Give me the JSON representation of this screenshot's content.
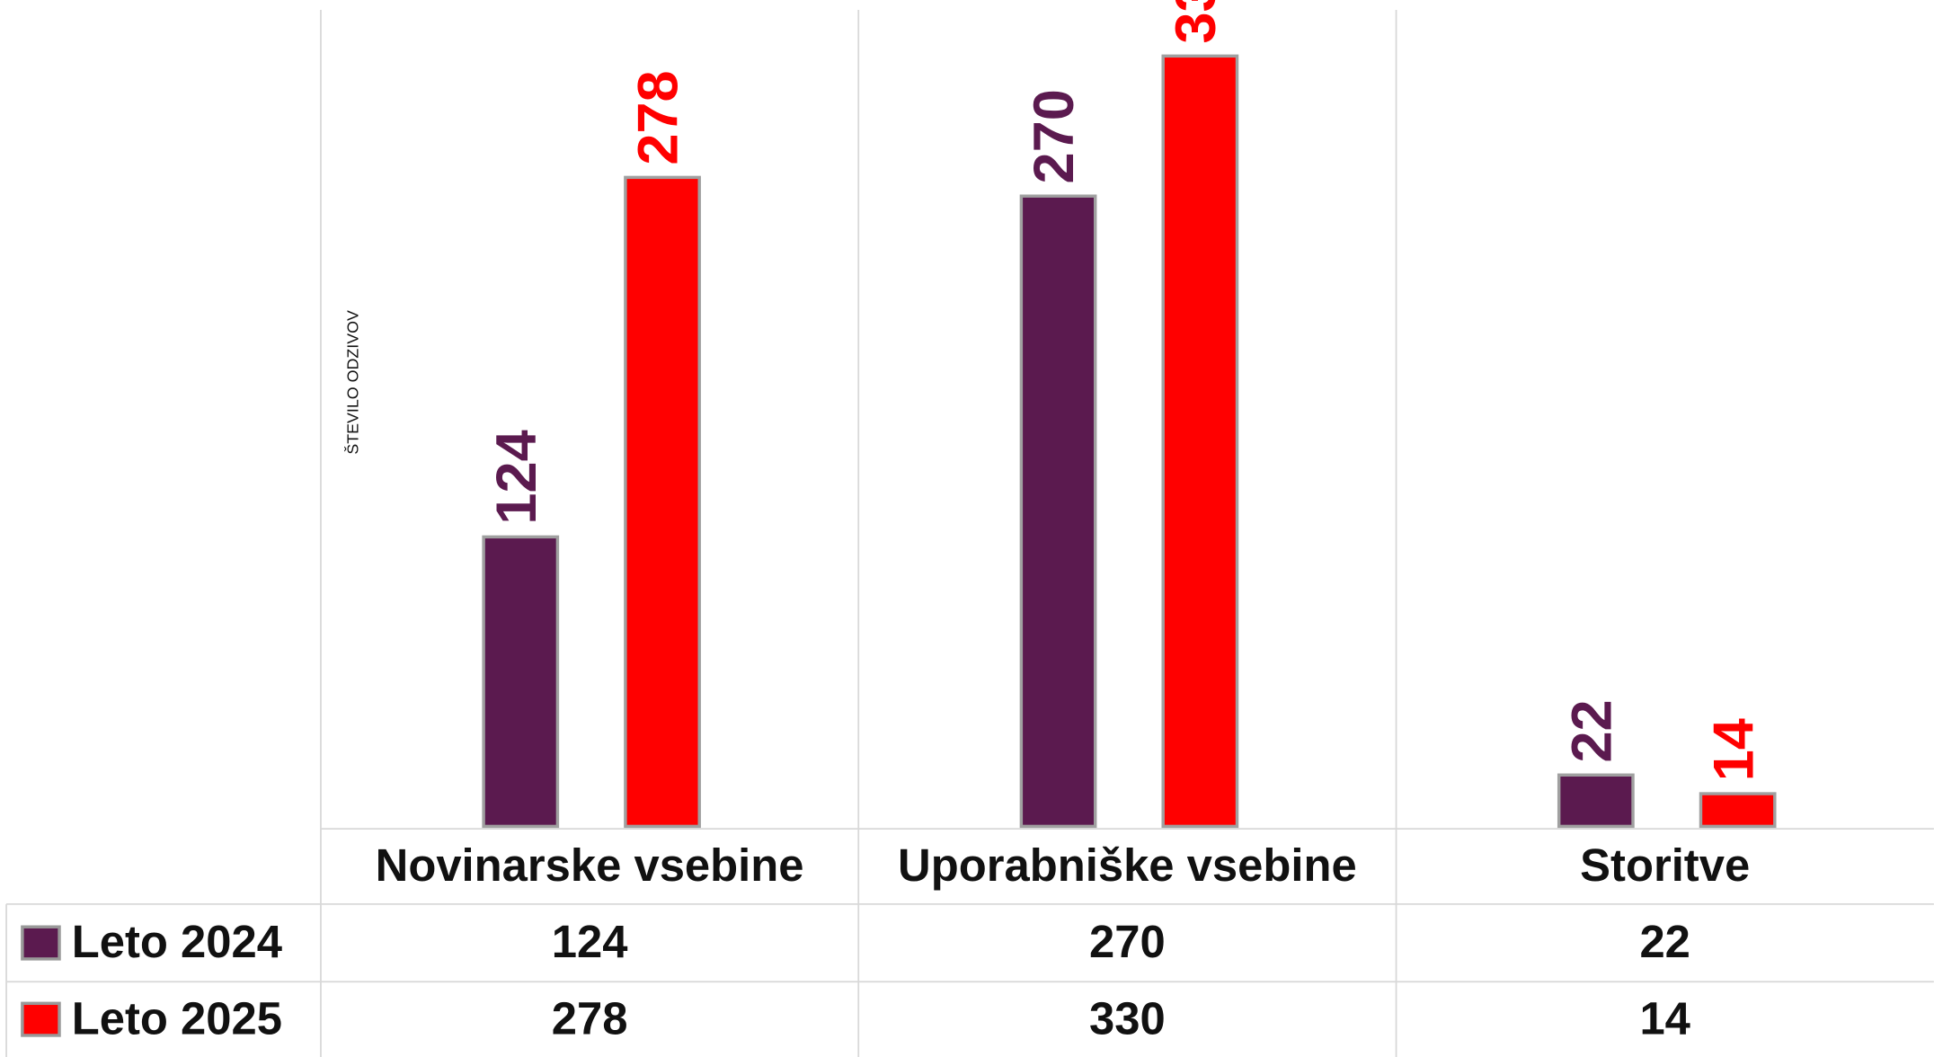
{
  "chart_data": {
    "type": "bar",
    "y_label": "ŠTEVILO ODZIVOV",
    "categories": [
      "Novinarske vsebine",
      "Uporabniške vsebine",
      "Storitve"
    ],
    "series": [
      {
        "name": "Leto 2024",
        "color": "#5b1a4f",
        "values": [
          124,
          270,
          22
        ]
      },
      {
        "name": "Leto 2025",
        "color": "#ff0000",
        "values": [
          278,
          330,
          14
        ]
      }
    ],
    "ylim": [
      0,
      354
    ],
    "data_table": true
  }
}
